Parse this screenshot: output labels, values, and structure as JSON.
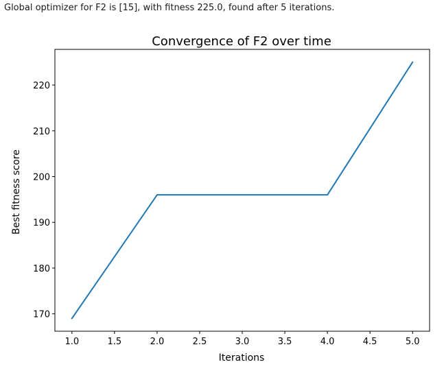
{
  "output": {
    "message": "Global optimizer for F2 is [15], with fitness 225.0, found after 5 iterations."
  },
  "chart_data": {
    "type": "line",
    "title": "Convergence of F2 over time",
    "xlabel": "Iterations",
    "ylabel": "Best fitness score",
    "x": [
      1.0,
      2.0,
      3.0,
      4.0,
      5.0
    ],
    "series": [
      {
        "values": [
          169,
          196,
          196,
          196,
          225
        ],
        "color": "#1f77b4"
      }
    ],
    "xlim": [
      0.8,
      5.2
    ],
    "ylim": [
      166.2,
      227.8
    ],
    "xticks": [
      1.0,
      1.5,
      2.0,
      2.5,
      3.0,
      3.5,
      4.0,
      4.5,
      5.0
    ],
    "xtick_labels": [
      "1.0",
      "1.5",
      "2.0",
      "2.5",
      "3.0",
      "3.5",
      "4.0",
      "4.5",
      "5.0"
    ],
    "yticks": [
      170,
      180,
      190,
      200,
      210,
      220
    ],
    "ytick_labels": [
      "170",
      "180",
      "190",
      "200",
      "210",
      "220"
    ],
    "grid": false
  }
}
